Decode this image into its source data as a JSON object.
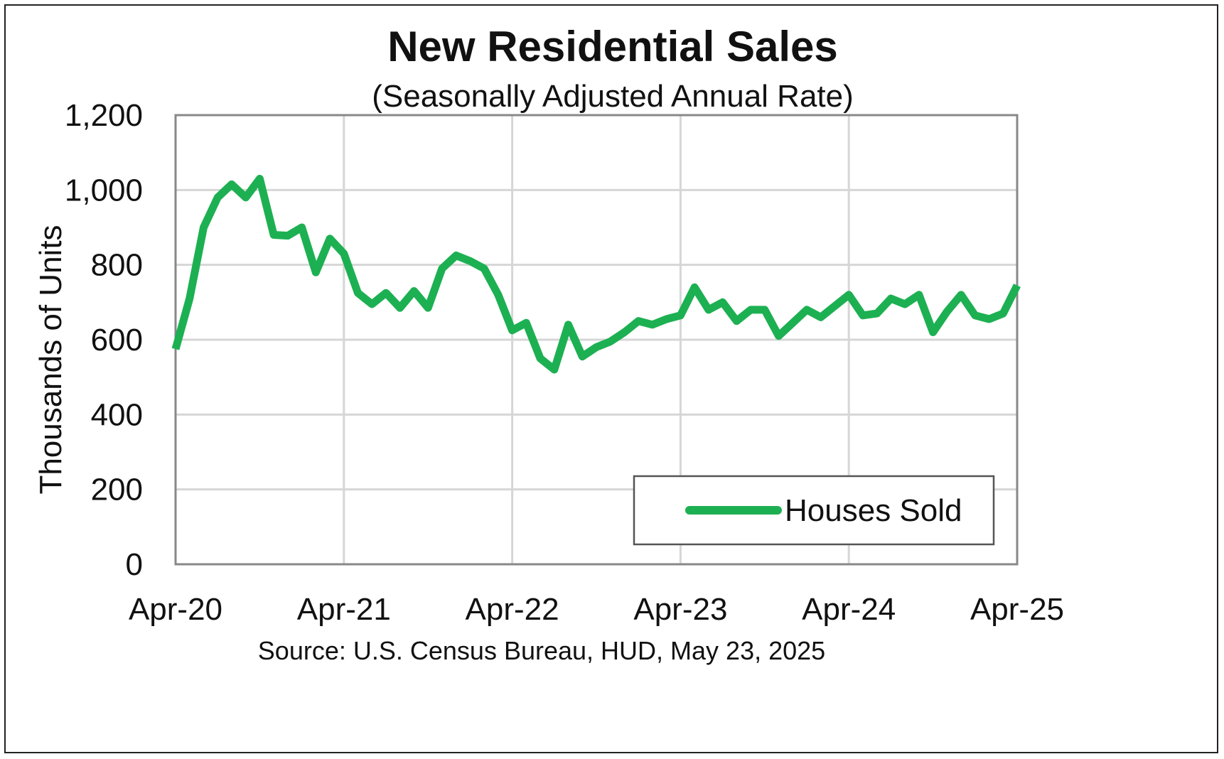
{
  "chart_data": {
    "type": "line",
    "title": "New Residential Sales",
    "subtitle": "(Seasonally Adjusted Annual Rate)",
    "ylabel": "Thousands of Units",
    "xlabel": "",
    "source": "Source:  U.S. Census Bureau, HUD, May 23, 2025",
    "ylim": [
      0,
      1200
    ],
    "yticks": [
      "0",
      "200",
      "400",
      "600",
      "800",
      "1,000",
      "1,200"
    ],
    "ytick_values": [
      0,
      200,
      400,
      600,
      800,
      1000,
      1200
    ],
    "xticks": [
      "Apr-20",
      "Apr-21",
      "Apr-22",
      "Apr-23",
      "Apr-24",
      "Apr-25"
    ],
    "x_start": "Apr-20",
    "x_end": "Apr-25",
    "grid": true,
    "legend": "bottom-right",
    "series": [
      {
        "name": "Houses Sold",
        "color": "#1db052",
        "values": [
          575,
          710,
          900,
          980,
          1015,
          980,
          1030,
          880,
          878,
          900,
          780,
          870,
          830,
          725,
          695,
          725,
          685,
          730,
          685,
          790,
          825,
          810,
          790,
          720,
          625,
          645,
          550,
          520,
          640,
          555,
          580,
          595,
          620,
          650,
          640,
          655,
          665,
          740,
          680,
          700,
          650,
          680,
          680,
          610,
          645,
          680,
          660,
          690,
          720,
          665,
          670,
          710,
          695,
          720,
          620,
          675,
          720,
          665,
          655,
          670,
          745
        ]
      }
    ]
  }
}
